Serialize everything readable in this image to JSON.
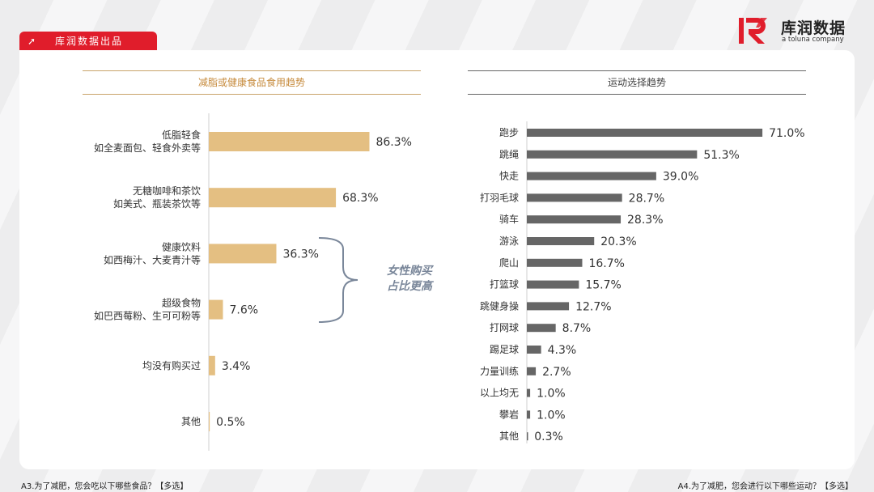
{
  "header": {
    "tag_icon": "arrow-up-right-icon",
    "tag_label": "库润数据出品",
    "logo_name": "库润数据",
    "logo_sub": "a toluna company",
    "brand_color": "#e01d2b"
  },
  "left_chart_title": "减脂或健康食品食用趋势",
  "right_chart_title": "运动选择趋势",
  "callout": [
    "女性购买",
    "占比更高"
  ],
  "footnotes": {
    "left": "A3.为了减肥，您会吃以下哪些食品？【多选】",
    "right": "A4.为了减肥，您会进行以下哪些运动？【多选】"
  },
  "chart_data": [
    {
      "type": "bar",
      "orientation": "horizontal",
      "title": "减脂或健康食品食用趋势",
      "bar_color": "#e4bf82",
      "categories": [
        [
          "低脂轻食",
          "如全麦面包、轻食外卖等"
        ],
        [
          "无糖咖啡和茶饮",
          "如美式、瓶装茶饮等"
        ],
        [
          "健康饮料",
          "如西梅汁、大麦青汁等"
        ],
        [
          "超级食物",
          "如巴西莓粉、生可可粉等"
        ],
        [
          "均没有购买过"
        ],
        [
          "其他"
        ]
      ],
      "values": [
        86.3,
        68.3,
        36.3,
        7.6,
        3.4,
        0.5
      ],
      "labels": [
        "86.3%",
        "68.3%",
        "36.3%",
        "7.6%",
        "3.4%",
        "0.5%"
      ]
    },
    {
      "type": "bar",
      "orientation": "horizontal",
      "title": "运动选择趋势",
      "bar_color": "#666666",
      "categories": [
        "跑步",
        "跳绳",
        "快走",
        "打羽毛球",
        "骑车",
        "游泳",
        "爬山",
        "打篮球",
        "跳健身操",
        "打网球",
        "踢足球",
        "力量训练",
        "以上均无",
        "攀岩",
        "其他"
      ],
      "values": [
        71.0,
        51.3,
        39.0,
        28.7,
        28.3,
        20.3,
        16.7,
        15.7,
        12.7,
        8.7,
        4.3,
        2.7,
        1.0,
        1.0,
        0.3
      ],
      "labels": [
        "71.0%",
        "51.3%",
        "39.0%",
        "28.7%",
        "28.3%",
        "20.3%",
        "16.7%",
        "15.7%",
        "12.7%",
        "8.7%",
        "4.3%",
        "2.7%",
        "1.0%",
        "1.0%",
        "0.3%"
      ]
    }
  ]
}
